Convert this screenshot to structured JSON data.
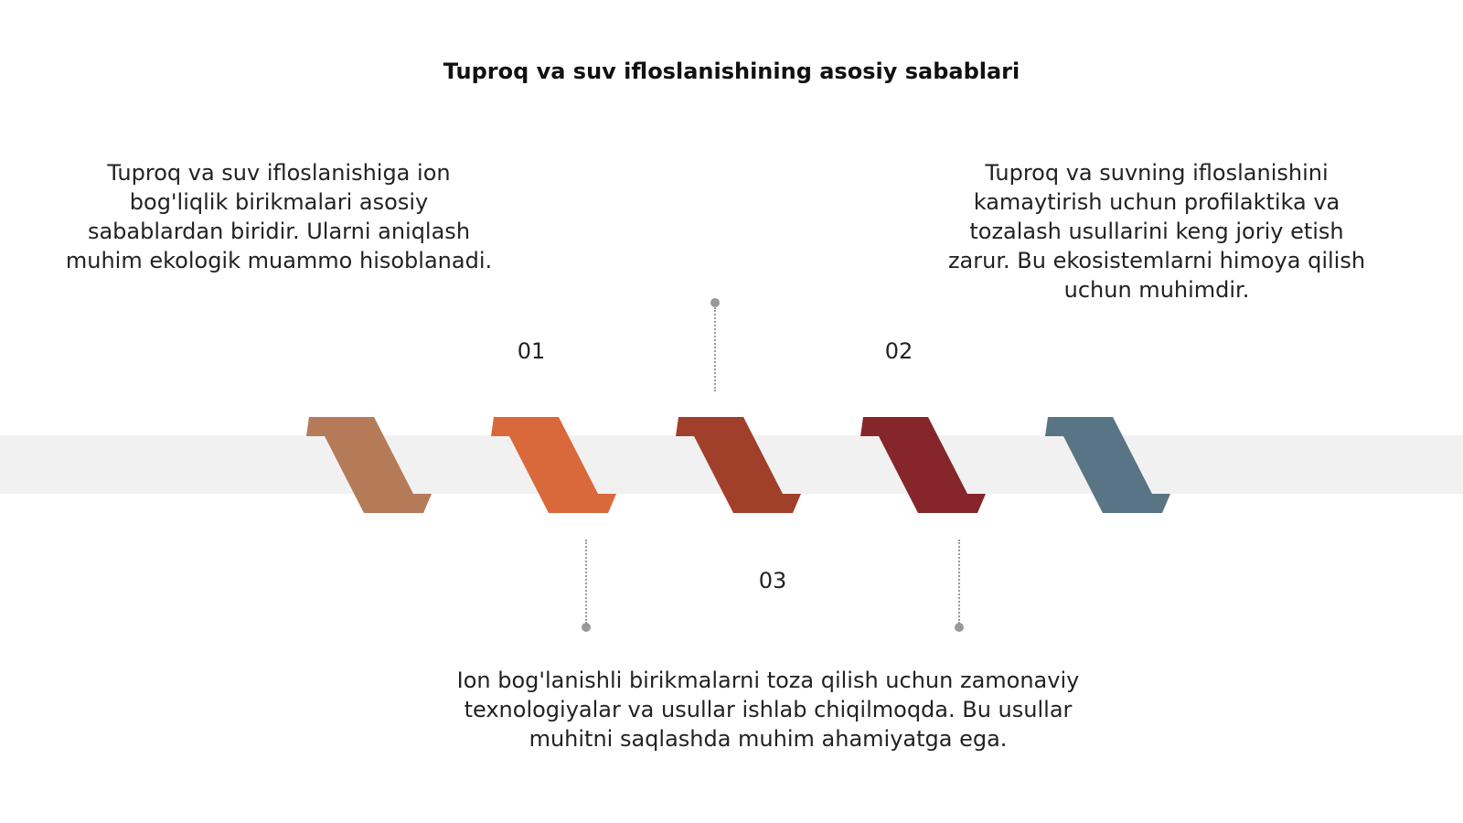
{
  "title": "Tuproq va suv ifloslanishining asosiy sabablari",
  "steps": [
    {
      "number": "01",
      "text": "Tuproq va suv ifloslanishiga ion bog'liqlik birikmalari asosiy sabablardan biridir. Ularni aniqlash muhim ekologik muammo hisoblanadi."
    },
    {
      "number": "02",
      "text": "Tuproq va suvning ifloslanishini kamaytirish uchun profilaktika va tozalash usullarini keng joriy etish zarur. Bu ekosistemlarni himoya qilish uchun muhimdir."
    },
    {
      "number": "03",
      "text": "Ion bog'lanishli birikmalarni toza qilish uchun zamonaviy texnologiyalar va usullar ishlab chiqilmoqda. Bu usullar muhitni saqlashda muhim ahamiyatga ega."
    }
  ],
  "colors": [
    "#B57A57",
    "#D9693A",
    "#A0402A",
    "#86262A",
    "#587485"
  ]
}
